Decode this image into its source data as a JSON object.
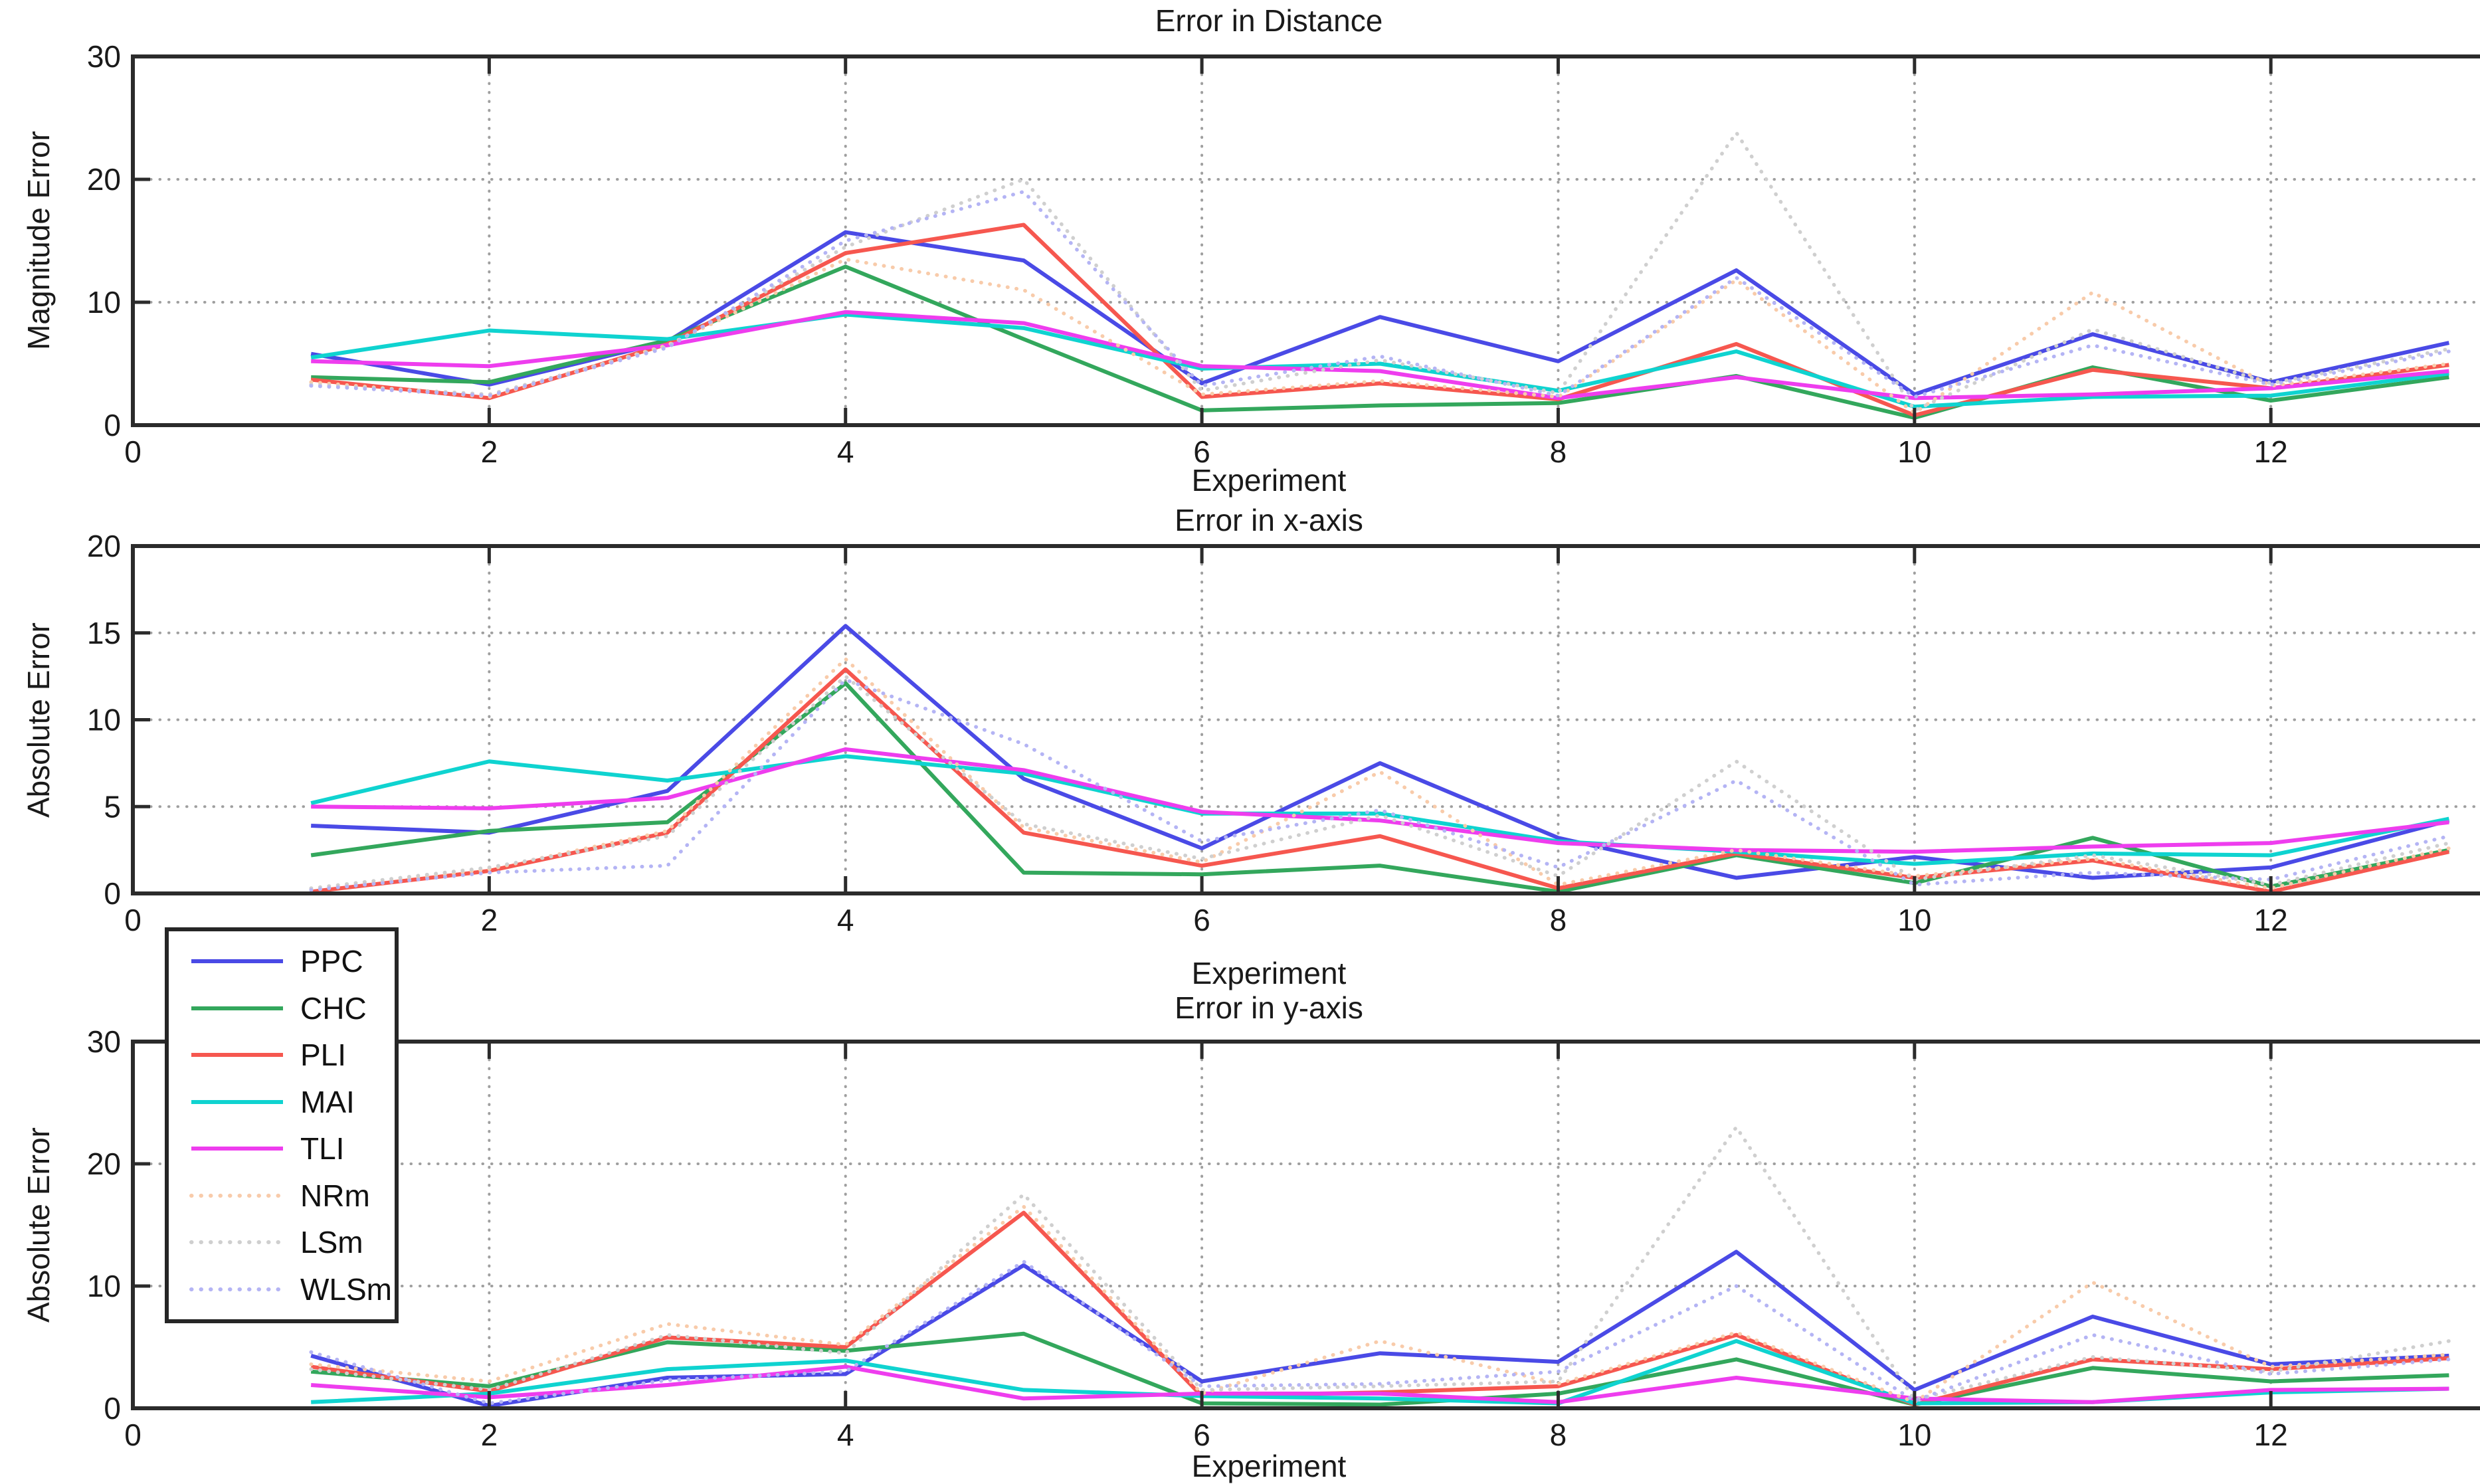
{
  "figure": {
    "background": "#ffffff",
    "axis_color": "#2b2b2b",
    "grid_color": "#9f9f9f",
    "text_color": "#1a1a1a"
  },
  "legend": {
    "entries": [
      {
        "label": "PPC",
        "color": "#4a4ae6",
        "style": "solid"
      },
      {
        "label": "CHC",
        "color": "#33a75c",
        "style": "solid"
      },
      {
        "label": "PLI",
        "color": "#f6574f",
        "style": "solid"
      },
      {
        "label": "MAI",
        "color": "#0fd3d0",
        "style": "solid"
      },
      {
        "label": "TLI",
        "color": "#ee3dee",
        "style": "solid"
      },
      {
        "label": "NRm",
        "color": "#f8cbaa",
        "style": "dotted"
      },
      {
        "label": "LSm",
        "color": "#cfcfcf",
        "style": "dotted"
      },
      {
        "label": "WLSm",
        "color": "#b4b4f4",
        "style": "dotted"
      }
    ]
  },
  "chart_data": [
    {
      "type": "line",
      "title": "Error in Distance",
      "xlabel": "Experiment",
      "ylabel": "Magnitude Error",
      "xlim": [
        0,
        13.2
      ],
      "ylim": [
        0,
        30
      ],
      "xticks": [
        0,
        2,
        4,
        6,
        8,
        10,
        12
      ],
      "yticks": [
        0,
        10,
        20,
        30
      ],
      "grid": true,
      "legend_position": "below-left",
      "x": [
        1,
        2,
        3,
        4,
        5,
        6,
        7,
        8,
        9,
        10,
        11,
        12,
        13
      ],
      "series": [
        {
          "name": "PPC",
          "color": "#4a4ae6",
          "style": "solid",
          "values": [
            5.8,
            3.3,
            6.8,
            15.7,
            13.4,
            3.4,
            8.8,
            5.2,
            12.6,
            2.5,
            7.4,
            3.5,
            6.7
          ]
        },
        {
          "name": "CHC",
          "color": "#33a75c",
          "style": "solid",
          "values": [
            3.9,
            3.5,
            6.9,
            12.9,
            7.0,
            1.2,
            1.6,
            1.8,
            4.0,
            0.6,
            4.7,
            2.0,
            3.9
          ]
        },
        {
          "name": "PLI",
          "color": "#f6574f",
          "style": "solid",
          "values": [
            3.7,
            2.2,
            6.6,
            14.0,
            16.3,
            2.3,
            3.4,
            2.1,
            6.6,
            0.8,
            4.5,
            3.0,
            4.9
          ]
        },
        {
          "name": "MAI",
          "color": "#0fd3d0",
          "style": "solid",
          "values": [
            5.5,
            7.7,
            7.0,
            9.0,
            7.9,
            4.6,
            5.0,
            2.8,
            6.0,
            1.5,
            2.3,
            2.4,
            4.2
          ]
        },
        {
          "name": "TLI",
          "color": "#ee3dee",
          "style": "solid",
          "values": [
            5.2,
            4.8,
            6.5,
            9.2,
            8.3,
            4.8,
            4.4,
            2.2,
            3.9,
            2.2,
            2.5,
            3.0,
            4.4
          ]
        },
        {
          "name": "NRm",
          "color": "#f8cbaa",
          "style": "dotted",
          "values": [
            3.5,
            2.3,
            6.5,
            13.5,
            11.0,
            2.5,
            3.6,
            2.3,
            11.8,
            1.0,
            10.8,
            3.2,
            5.0
          ]
        },
        {
          "name": "LSm",
          "color": "#cfcfcf",
          "style": "dotted",
          "values": [
            3.3,
            2.5,
            6.4,
            14.5,
            20.0,
            2.8,
            5.3,
            2.6,
            23.8,
            1.2,
            7.8,
            3.4,
            6.2
          ]
        },
        {
          "name": "WLSm",
          "color": "#b4b4f4",
          "style": "dotted",
          "values": [
            3.2,
            2.4,
            6.3,
            15.0,
            19.0,
            3.2,
            5.6,
            2.4,
            12.0,
            2.3,
            6.5,
            3.3,
            6.0
          ]
        }
      ]
    },
    {
      "type": "line",
      "title": "Error in x-axis",
      "xlabel": "Experiment",
      "ylabel": "Absolute Error",
      "xlim": [
        0,
        13.2
      ],
      "ylim": [
        0,
        20
      ],
      "xticks": [
        0,
        2,
        4,
        6,
        8,
        10,
        12
      ],
      "yticks": [
        0,
        5,
        10,
        15,
        20
      ],
      "grid": true,
      "x": [
        1,
        2,
        3,
        4,
        5,
        6,
        7,
        8,
        9,
        10,
        11,
        12,
        13
      ],
      "series": [
        {
          "name": "PPC",
          "color": "#4a4ae6",
          "style": "solid",
          "values": [
            3.9,
            3.5,
            5.9,
            15.4,
            6.6,
            2.6,
            7.5,
            3.2,
            0.9,
            2.1,
            0.9,
            1.5,
            4.2
          ]
        },
        {
          "name": "CHC",
          "color": "#33a75c",
          "style": "solid",
          "values": [
            2.2,
            3.6,
            4.1,
            12.1,
            1.2,
            1.1,
            1.6,
            0.1,
            2.2,
            0.6,
            3.2,
            0.4,
            2.5
          ]
        },
        {
          "name": "PLI",
          "color": "#f6574f",
          "style": "solid",
          "values": [
            0.1,
            1.3,
            3.5,
            12.9,
            3.5,
            1.6,
            3.3,
            0.3,
            2.3,
            0.9,
            1.9,
            0.1,
            2.4
          ]
        },
        {
          "name": "MAI",
          "color": "#0fd3d0",
          "style": "solid",
          "values": [
            5.2,
            7.6,
            6.5,
            7.9,
            6.9,
            4.6,
            4.6,
            3.0,
            2.4,
            1.7,
            2.3,
            2.2,
            4.3
          ]
        },
        {
          "name": "TLI",
          "color": "#ee3dee",
          "style": "solid",
          "values": [
            5.0,
            4.9,
            5.5,
            8.3,
            7.1,
            4.7,
            4.2,
            2.9,
            2.5,
            2.4,
            2.7,
            2.9,
            4.1
          ]
        },
        {
          "name": "NRm",
          "color": "#f8cbaa",
          "style": "dotted",
          "values": [
            0.2,
            1.4,
            3.6,
            13.5,
            3.8,
            1.8,
            7.0,
            0.5,
            2.5,
            1.0,
            2.0,
            0.3,
            2.6
          ]
        },
        {
          "name": "LSm",
          "color": "#cfcfcf",
          "style": "dotted",
          "values": [
            0.3,
            1.5,
            3.3,
            12.5,
            4.0,
            2.0,
            4.5,
            1.0,
            7.6,
            0.8,
            2.2,
            0.5,
            2.9
          ]
        },
        {
          "name": "WLSm",
          "color": "#b4b4f4",
          "style": "dotted",
          "values": [
            0.2,
            1.2,
            1.6,
            12.3,
            8.6,
            3.0,
            4.8,
            1.5,
            6.5,
            0.5,
            1.2,
            0.8,
            3.3
          ]
        }
      ]
    },
    {
      "type": "line",
      "title": "Error in y-axis",
      "xlabel": "Experiment",
      "ylabel": "Absolute Error",
      "xlim": [
        0,
        13.2
      ],
      "ylim": [
        0,
        30
      ],
      "xticks": [
        0,
        2,
        4,
        6,
        8,
        10,
        12
      ],
      "yticks": [
        0,
        10,
        20,
        30
      ],
      "grid": true,
      "x": [
        1,
        2,
        3,
        4,
        5,
        6,
        7,
        8,
        9,
        10,
        11,
        12,
        13
      ],
      "series": [
        {
          "name": "PPC",
          "color": "#4a4ae6",
          "style": "solid",
          "values": [
            4.3,
            0.2,
            2.5,
            2.8,
            11.7,
            2.2,
            4.5,
            3.8,
            12.8,
            1.5,
            7.5,
            3.6,
            4.3
          ]
        },
        {
          "name": "CHC",
          "color": "#33a75c",
          "style": "solid",
          "values": [
            3.0,
            1.8,
            5.4,
            4.7,
            6.1,
            0.4,
            0.3,
            1.2,
            4.0,
            0.3,
            3.3,
            2.2,
            2.7
          ]
        },
        {
          "name": "PLI",
          "color": "#f6574f",
          "style": "solid",
          "values": [
            3.4,
            1.4,
            5.8,
            5.0,
            16.0,
            1.0,
            1.3,
            1.8,
            6.0,
            0.3,
            4.0,
            3.2,
            4.1
          ]
        },
        {
          "name": "MAI",
          "color": "#0fd3d0",
          "style": "solid",
          "values": [
            0.5,
            1.2,
            3.2,
            3.9,
            1.5,
            1.0,
            0.8,
            0.4,
            5.5,
            0.4,
            0.5,
            1.3,
            1.6
          ]
        },
        {
          "name": "TLI",
          "color": "#ee3dee",
          "style": "solid",
          "values": [
            1.9,
            0.9,
            1.9,
            3.4,
            0.8,
            1.2,
            1.2,
            0.5,
            2.5,
            0.8,
            0.5,
            1.5,
            1.6
          ]
        },
        {
          "name": "NRm",
          "color": "#f8cbaa",
          "style": "dotted",
          "values": [
            3.6,
            2.2,
            6.9,
            5.2,
            16.5,
            1.2,
            5.5,
            2.0,
            6.2,
            0.5,
            10.3,
            3.4,
            4.4
          ]
        },
        {
          "name": "LSm",
          "color": "#cfcfcf",
          "style": "dotted",
          "values": [
            3.2,
            1.5,
            6.0,
            4.5,
            17.5,
            1.5,
            1.8,
            2.2,
            23.0,
            0.7,
            4.2,
            3.0,
            5.5
          ]
        },
        {
          "name": "WLSm",
          "color": "#b4b4f4",
          "style": "dotted",
          "values": [
            4.6,
            0.4,
            2.3,
            3.0,
            12.0,
            1.8,
            2.0,
            3.0,
            10.0,
            0.6,
            6.0,
            2.8,
            4.0
          ]
        }
      ]
    }
  ]
}
